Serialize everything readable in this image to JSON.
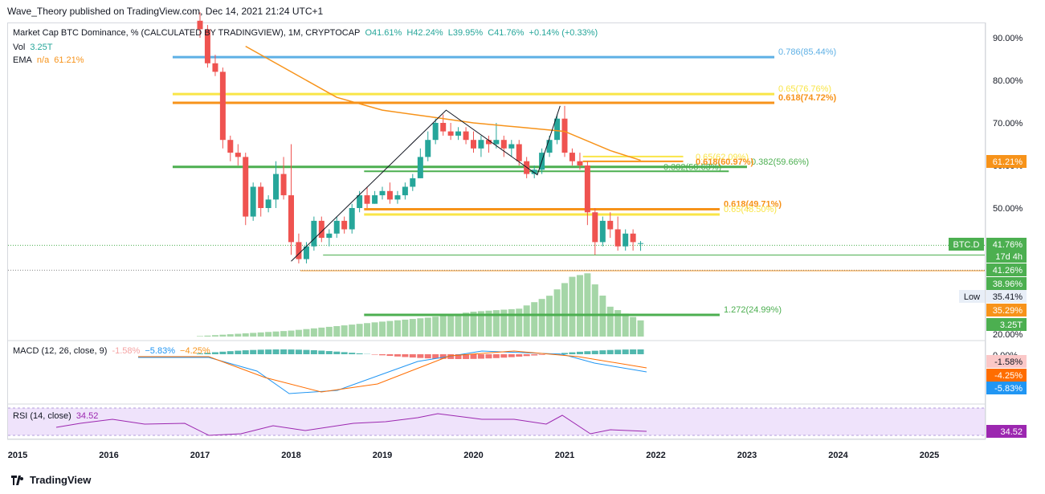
{
  "header": {
    "published": "Wave_Theory published on TradingView.com, Dec 14, 2021 21:24 UTC+1"
  },
  "legend": {
    "symbol": "Market Cap BTC Dominance, % (CALCULATED BY TRADINGVIEW), 1M, CRYPTOCAP",
    "open": "O41.61%",
    "high": "H42.24%",
    "low": "L39.95%",
    "close": "C41.76%",
    "change": "+0.14% (+0.33%)",
    "vol_label": "Vol",
    "vol_value": "3.25T",
    "ema_label": "EMA",
    "ema_na": "n/a",
    "ema_value": "61.21%"
  },
  "macd_legend": {
    "label": "MACD (12, 26, close, 9)",
    "hist": "-1.58%",
    "macd": "−5.83%",
    "signal": "−4.25%"
  },
  "rsi_legend": {
    "label": "RSI (14, close)",
    "value": "34.52"
  },
  "price_axis": [
    "90.00%",
    "80.00%",
    "70.00%",
    "60.00%",
    "50.00%",
    "20.00%"
  ],
  "badges": {
    "ema": "61.21%",
    "btcd_tag": "BTC.D",
    "btcd_price": "41.76%",
    "countdown": "17d 4h",
    "p1": "41.26%",
    "p2": "38.96%",
    "low_tag": "Low",
    "low_value": "35.41%",
    "orange_val": "35.29%",
    "vol": "3.25T",
    "macd_hist": "-1.58%",
    "macd_signal": "-4.25%",
    "macd_line": "-5.83%",
    "rsi": "34.52",
    "macd_zero": "0.00%"
  },
  "fib_labels": {
    "f786": "0.786(85.44%)",
    "f65a": "0.65(76.76%)",
    "f618a": "0.618(74.72%)",
    "f65b": "0.65(62.09%)",
    "f618b": "0.618(60.97%)",
    "f382a": "0.382(59.66%)",
    "f382b": "0.382(58.63%)",
    "f618c": "0.618(49.71%)",
    "f65c": "0.65(48.50%)",
    "f1272": "1.272(24.99%)"
  },
  "time_axis": [
    "2015",
    "2016",
    "2017",
    "2018",
    "2019",
    "2020",
    "2021",
    "2022",
    "2023",
    "2024",
    "2025"
  ],
  "footer": {
    "brand": "TradingView"
  },
  "colors": {
    "up": "#26a69a",
    "down": "#ef5350",
    "ema": "#f7931a",
    "fib_blue": "#5eb0e5",
    "fib_yellow": "#f9e547",
    "fib_orange": "#f7931a",
    "fib_green": "#4caf50",
    "rsi": "#9c27b0"
  },
  "chart_data": {
    "type": "candlestick",
    "title": "Market Cap BTC Dominance, % (CALCULATED BY TRADINGVIEW), 1M, CRYPTOCAP",
    "y_unit": "%",
    "x_range": [
      2015,
      2025
    ],
    "candles": [
      [
        2017.0,
        94,
        96,
        90,
        92
      ],
      [
        2017.083,
        92,
        93,
        83,
        84
      ],
      [
        2017.167,
        84,
        86,
        81,
        82
      ],
      [
        2017.25,
        82,
        83,
        64,
        66
      ],
      [
        2017.333,
        66,
        67,
        61,
        63
      ],
      [
        2017.417,
        63,
        65,
        60,
        62
      ],
      [
        2017.5,
        62,
        63,
        46,
        48
      ],
      [
        2017.583,
        48,
        56,
        47,
        55
      ],
      [
        2017.667,
        55,
        56,
        48,
        50
      ],
      [
        2017.75,
        50,
        53,
        49,
        52
      ],
      [
        2017.833,
        52,
        61,
        50,
        58
      ],
      [
        2017.917,
        58,
        62,
        52,
        53
      ],
      [
        2018.0,
        53,
        65,
        39,
        42
      ],
      [
        2018.083,
        42,
        44,
        37,
        38
      ],
      [
        2018.167,
        38,
        42,
        37,
        41
      ],
      [
        2018.25,
        41,
        48,
        40,
        47
      ],
      [
        2018.333,
        47,
        48,
        42,
        43
      ],
      [
        2018.417,
        43,
        45,
        41,
        44
      ],
      [
        2018.5,
        44,
        48,
        43,
        47
      ],
      [
        2018.583,
        47,
        48,
        44,
        45
      ],
      [
        2018.667,
        45,
        51,
        44,
        50
      ],
      [
        2018.75,
        50,
        54,
        49,
        53
      ],
      [
        2018.833,
        53,
        55,
        50,
        51
      ],
      [
        2018.917,
        51,
        54,
        51,
        53
      ],
      [
        2019.0,
        53,
        55,
        52,
        54
      ],
      [
        2019.083,
        54,
        56,
        51,
        52
      ],
      [
        2019.167,
        52,
        54,
        51,
        53
      ],
      [
        2019.25,
        53,
        56,
        52,
        55
      ],
      [
        2019.333,
        55,
        58,
        54,
        57
      ],
      [
        2019.417,
        57,
        64,
        57,
        62
      ],
      [
        2019.5,
        62,
        68,
        61,
        66
      ],
      [
        2019.583,
        66,
        71,
        65,
        70
      ],
      [
        2019.667,
        70,
        72,
        67,
        68
      ],
      [
        2019.75,
        68,
        70,
        66,
        67
      ],
      [
        2019.833,
        67,
        69,
        66,
        68
      ],
      [
        2019.917,
        68,
        69,
        65,
        66
      ],
      [
        2020.0,
        66,
        68,
        63,
        64
      ],
      [
        2020.083,
        64,
        67,
        62,
        66
      ],
      [
        2020.167,
        66,
        67,
        63,
        65
      ],
      [
        2020.25,
        65,
        70,
        64,
        66
      ],
      [
        2020.333,
        66,
        67,
        62,
        64
      ],
      [
        2020.417,
        64,
        66,
        62,
        65
      ],
      [
        2020.5,
        65,
        66,
        60,
        61
      ],
      [
        2020.583,
        61,
        62,
        57,
        58
      ],
      [
        2020.667,
        58,
        60,
        57,
        59
      ],
      [
        2020.75,
        59,
        64,
        58,
        63
      ],
      [
        2020.833,
        63,
        67,
        62,
        66
      ],
      [
        2020.917,
        66,
        72,
        65,
        71
      ],
      [
        2021.0,
        71,
        74,
        62,
        63
      ],
      [
        2021.083,
        63,
        64,
        60,
        61
      ],
      [
        2021.167,
        61,
        63,
        59,
        60
      ],
      [
        2021.25,
        60,
        61,
        46,
        49
      ],
      [
        2021.333,
        49,
        50,
        39,
        42
      ],
      [
        2021.417,
        42,
        48,
        41,
        47
      ],
      [
        2021.5,
        47,
        49,
        43,
        45
      ],
      [
        2021.583,
        45,
        48,
        40,
        41
      ],
      [
        2021.667,
        41,
        45,
        40,
        44
      ],
      [
        2021.75,
        44,
        45,
        40,
        42
      ],
      [
        2021.833,
        41.61,
        42.24,
        39.95,
        41.76
      ]
    ],
    "ema": [
      [
        2017.5,
        88
      ],
      [
        2018.0,
        82
      ],
      [
        2018.5,
        76
      ],
      [
        2019.0,
        73
      ],
      [
        2019.5,
        71.5
      ],
      [
        2020.0,
        70
      ],
      [
        2020.5,
        69
      ],
      [
        2021.0,
        68
      ],
      [
        2021.5,
        63.5
      ],
      [
        2021.833,
        61.21
      ]
    ],
    "fib_levels": [
      {
        "label": "0.786(85.44%)",
        "value": 85.44,
        "color": "#5eb0e5"
      },
      {
        "label": "0.65(76.76%)",
        "value": 76.76,
        "color": "#f9e547"
      },
      {
        "label": "0.618(74.72%)",
        "value": 74.72,
        "color": "#f7931a"
      },
      {
        "label": "0.382(59.66%)",
        "value": 59.66,
        "color": "#4caf50"
      },
      {
        "label": "0.618(49.71%)",
        "value": 49.71,
        "color": "#f7931a"
      },
      {
        "label": "0.65(48.50%)",
        "value": 48.5,
        "color": "#f9e547"
      },
      {
        "label": "1.272(24.99%)",
        "value": 24.99,
        "color": "#4caf50"
      }
    ],
    "volume": [
      [
        2017.0,
        0.1
      ],
      [
        2018.0,
        1.2
      ],
      [
        2019.0,
        3.0
      ],
      [
        2019.5,
        3.8
      ],
      [
        2020.0,
        5.0
      ],
      [
        2020.5,
        5.6
      ],
      [
        2020.833,
        8.2
      ],
      [
        2021.083,
        12.0
      ],
      [
        2021.25,
        12.7
      ],
      [
        2021.5,
        6.0
      ],
      [
        2021.833,
        3.25
      ]
    ],
    "macd": {
      "hist": -1.58,
      "macd": -5.83,
      "signal": -4.25
    },
    "rsi": 34.52
  }
}
